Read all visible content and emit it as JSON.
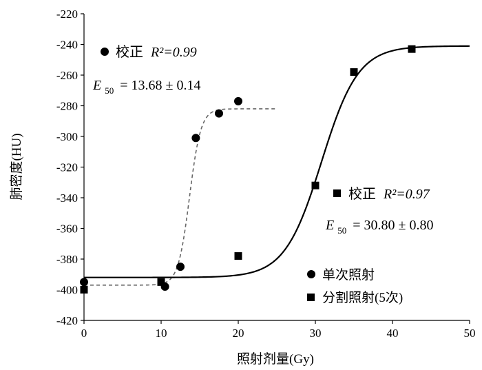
{
  "chart_data": {
    "type": "scatter",
    "xlabel": "照射剂量(Gy)",
    "ylabel": "肺密度(HU)",
    "xlim": [
      0,
      50
    ],
    "ylim": [
      -420,
      -220
    ],
    "x_ticks": [
      "0",
      "10",
      "20",
      "30",
      "40",
      "50"
    ],
    "y_ticks": [
      "-220",
      "-240",
      "-260",
      "-280",
      "-300",
      "-320",
      "-340",
      "-360",
      "-380",
      "-400",
      "-420"
    ],
    "grid": false,
    "legend_placement": "bottom-right",
    "series": [
      {
        "name": "单次照射",
        "marker": "circle",
        "points": [
          {
            "x": 0,
            "y": -395
          },
          {
            "x": 10.5,
            "y": -398
          },
          {
            "x": 12.5,
            "y": -385
          },
          {
            "x": 14.5,
            "y": -301
          },
          {
            "x": 17.5,
            "y": -285
          },
          {
            "x": 20,
            "y": -277
          }
        ],
        "fit": {
          "style": "dashed",
          "bottom": -397,
          "top": -282,
          "e50": 13.68,
          "x_range": [
            0,
            25
          ],
          "r2_label": "R²=0.99",
          "e50_label": "= 13.68 ± 0.14"
        }
      },
      {
        "name": "分割照射(5次)",
        "marker": "square",
        "points": [
          {
            "x": 0,
            "y": -400
          },
          {
            "x": 10,
            "y": -395
          },
          {
            "x": 20,
            "y": -378
          },
          {
            "x": 30,
            "y": -332
          },
          {
            "x": 35,
            "y": -258
          },
          {
            "x": 42.5,
            "y": -243
          }
        ],
        "fit": {
          "style": "solid",
          "bottom": -392,
          "top": -241,
          "e50": 30.8,
          "x_range": [
            0,
            50
          ],
          "r2_label": "R²=0.97",
          "e50_label": "= 30.80 ± 0.80"
        }
      }
    ],
    "annotations": {
      "correction_label": "校正",
      "e50_symbol": "E",
      "e50_subscript": "50"
    }
  }
}
